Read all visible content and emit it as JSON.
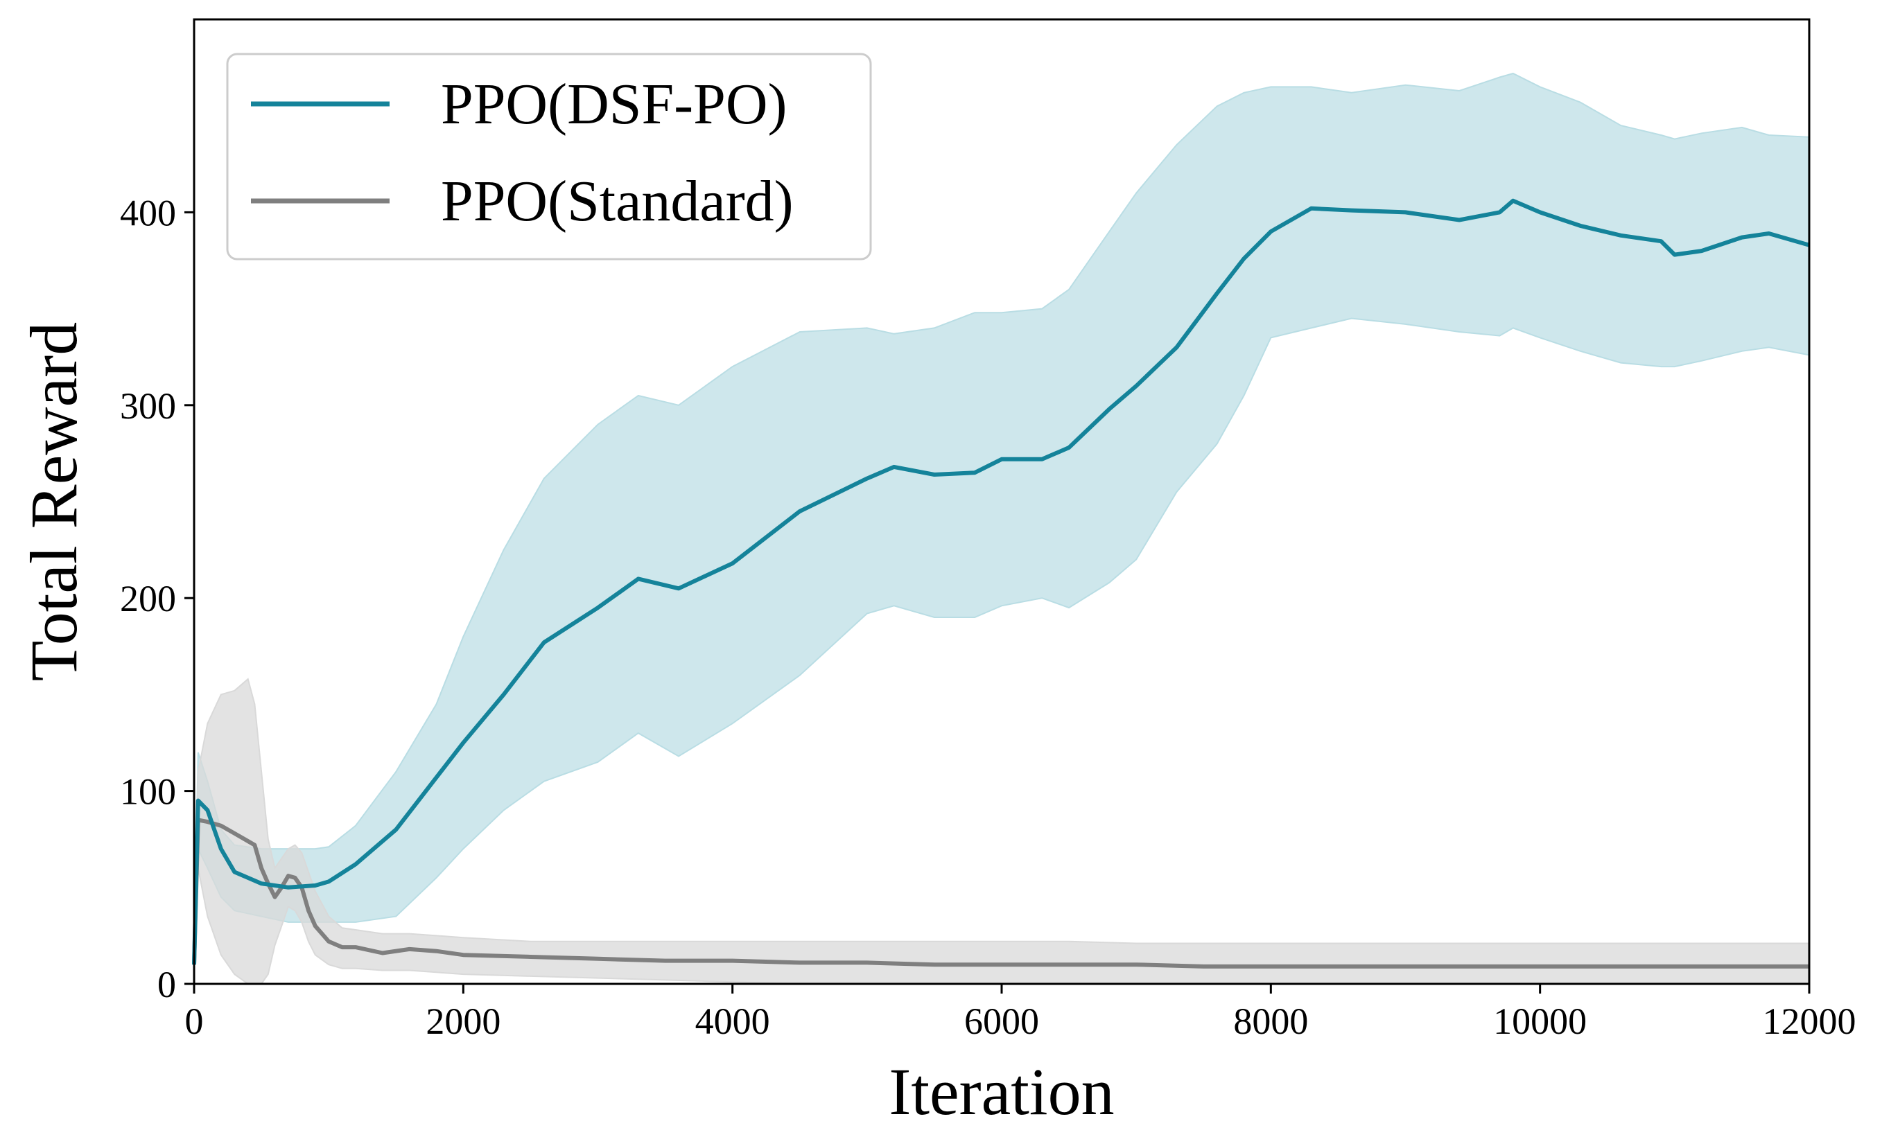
{
  "chart_data": {
    "type": "line",
    "title": "",
    "xlabel": "Iteration",
    "ylabel": "Total Reward",
    "xlim": [
      0,
      12000
    ],
    "ylim": [
      0,
      500
    ],
    "xticks": [
      0,
      2000,
      4000,
      6000,
      8000,
      10000,
      12000
    ],
    "yticks": [
      0,
      100,
      200,
      300,
      400
    ],
    "grid": false,
    "legend_position": "top-left",
    "series": [
      {
        "name": "PPO(DSF-PO)",
        "color": "#14839a",
        "band_color": "#b9dde4",
        "x": [
          0,
          30,
          100,
          200,
          300,
          500,
          700,
          900,
          1000,
          1200,
          1500,
          1800,
          2000,
          2300,
          2600,
          3000,
          3300,
          3600,
          4000,
          4500,
          5000,
          5200,
          5500,
          5800,
          6000,
          6300,
          6500,
          6800,
          7000,
          7300,
          7600,
          7800,
          8000,
          8300,
          8600,
          9000,
          9400,
          9700,
          9800,
          10000,
          10300,
          10600,
          10900,
          11000,
          11200,
          11500,
          11700,
          12000
        ],
        "y": [
          10,
          95,
          90,
          70,
          58,
          52,
          50,
          51,
          53,
          62,
          80,
          107,
          125,
          150,
          177,
          195,
          210,
          205,
          218,
          245,
          262,
          268,
          264,
          265,
          272,
          272,
          278,
          298,
          310,
          330,
          358,
          376,
          390,
          402,
          401,
          400,
          396,
          400,
          406,
          400,
          393,
          388,
          385,
          378,
          380,
          387,
          389,
          383
        ],
        "upper": [
          10,
          120,
          105,
          80,
          72,
          70,
          70,
          70,
          71,
          82,
          110,
          145,
          180,
          225,
          262,
          290,
          305,
          300,
          320,
          338,
          340,
          337,
          340,
          348,
          348,
          350,
          360,
          390,
          410,
          435,
          455,
          462,
          465,
          465,
          462,
          466,
          463,
          470,
          472,
          465,
          457,
          445,
          440,
          438,
          441,
          444,
          440,
          439
        ],
        "lower": [
          10,
          70,
          60,
          45,
          38,
          35,
          32,
          32,
          32,
          32,
          35,
          55,
          70,
          90,
          105,
          115,
          130,
          118,
          135,
          160,
          192,
          196,
          190,
          190,
          196,
          200,
          195,
          208,
          220,
          255,
          280,
          305,
          335,
          340,
          345,
          342,
          338,
          336,
          340,
          335,
          328,
          322,
          320,
          320,
          323,
          328,
          330,
          326
        ]
      },
      {
        "name": "PPO(Standard)",
        "color": "#7f7f7f",
        "band_color": "#d9d9d9",
        "x": [
          0,
          30,
          100,
          200,
          300,
          400,
          450,
          500,
          550,
          600,
          650,
          700,
          750,
          800,
          850,
          900,
          1000,
          1100,
          1200,
          1400,
          1600,
          1800,
          2000,
          2500,
          3000,
          3500,
          4000,
          4500,
          5000,
          5500,
          6000,
          6500,
          7000,
          7500,
          8000,
          8500,
          9000,
          9500,
          10000,
          10500,
          11000,
          11500,
          12000
        ],
        "y": [
          10,
          85,
          84,
          82,
          78,
          74,
          72,
          60,
          52,
          45,
          50,
          56,
          55,
          50,
          38,
          30,
          22,
          19,
          19,
          16,
          18,
          17,
          15,
          14,
          13,
          12,
          12,
          11,
          11,
          10,
          10,
          10,
          10,
          9,
          9,
          9,
          9,
          9,
          9,
          9,
          9,
          9,
          9
        ],
        "upper": [
          10,
          110,
          135,
          150,
          152,
          158,
          145,
          110,
          75,
          60,
          65,
          70,
          72,
          68,
          58,
          48,
          35,
          29,
          28,
          26,
          26,
          25,
          24,
          22,
          22,
          22,
          22,
          22,
          22,
          22,
          22,
          22,
          21,
          21,
          21,
          21,
          21,
          21,
          21,
          21,
          21,
          21,
          21
        ],
        "lower": [
          10,
          60,
          35,
          15,
          5,
          0,
          0,
          0,
          5,
          20,
          30,
          40,
          38,
          32,
          22,
          15,
          10,
          8,
          8,
          7,
          7,
          6,
          5,
          4,
          3,
          2,
          1,
          0,
          0,
          0,
          0,
          0,
          0,
          0,
          0,
          0,
          0,
          0,
          0,
          0,
          0,
          0,
          0
        ]
      }
    ]
  }
}
